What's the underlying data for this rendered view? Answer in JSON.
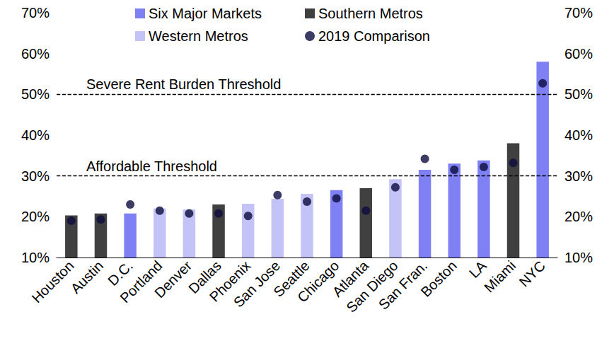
{
  "chart_data": {
    "type": "bar",
    "categories": [
      "Houston",
      "Austin",
      "D.C.",
      "Portland",
      "Denver",
      "Dallas",
      "Phoenix",
      "San Jose",
      "Seattle",
      "Chicago",
      "Atlanta",
      "San Diego",
      "San Fran.",
      "Boston",
      "LA",
      "Miami",
      "NYC"
    ],
    "series": [
      {
        "name": "Six Major Markets",
        "type": "bar",
        "color": "#8080f5",
        "values": [
          null,
          null,
          20.8,
          null,
          null,
          null,
          null,
          null,
          null,
          26.5,
          null,
          null,
          31.5,
          33.0,
          33.8,
          null,
          58.0
        ]
      },
      {
        "name": "Southern Metros",
        "type": "bar",
        "color": "#404040",
        "values": [
          20.3,
          20.8,
          null,
          null,
          null,
          23.0,
          null,
          null,
          null,
          null,
          27.0,
          null,
          null,
          null,
          null,
          38.0,
          null
        ]
      },
      {
        "name": "Western Metros",
        "type": "bar",
        "color": "#c3c3f7",
        "values": [
          null,
          null,
          null,
          22.0,
          21.8,
          null,
          23.2,
          24.4,
          25.6,
          null,
          null,
          29.2,
          null,
          null,
          null,
          null,
          null
        ]
      },
      {
        "name": "2019 Comparison",
        "type": "scatter",
        "marker": "circle",
        "color": "#0b0b3d",
        "values": [
          19.0,
          19.3,
          23.0,
          21.5,
          20.8,
          20.8,
          20.2,
          25.3,
          23.7,
          24.5,
          21.5,
          27.2,
          34.2,
          31.5,
          32.2,
          33.2,
          52.7
        ]
      }
    ],
    "ylim": [
      10,
      70
    ],
    "yticks": [
      {
        "value": 10,
        "label": "10%"
      },
      {
        "value": 20,
        "label": "20%"
      },
      {
        "value": 30,
        "label": "30%"
      },
      {
        "value": 40,
        "label": "40%"
      },
      {
        "value": 50,
        "label": "50%"
      },
      {
        "value": 60,
        "label": "60%"
      },
      {
        "value": 70,
        "label": "70%"
      }
    ],
    "y2lim": [
      10,
      70
    ],
    "y2ticks": [
      {
        "value": 10,
        "label": "10%"
      },
      {
        "value": 20,
        "label": "20%"
      },
      {
        "value": 30,
        "label": "30%"
      },
      {
        "value": 40,
        "label": "40%"
      },
      {
        "value": 50,
        "label": "50%"
      },
      {
        "value": 60,
        "label": "60%"
      },
      {
        "value": 70,
        "label": "70%"
      }
    ],
    "annotations": [
      {
        "text": "Severe Rent Burden Threshold",
        "y": 50,
        "line_style": "dashed"
      },
      {
        "text": "Affordable Threshold",
        "y": 30,
        "line_style": "dashed"
      }
    ],
    "legend": "top",
    "grid": false
  }
}
